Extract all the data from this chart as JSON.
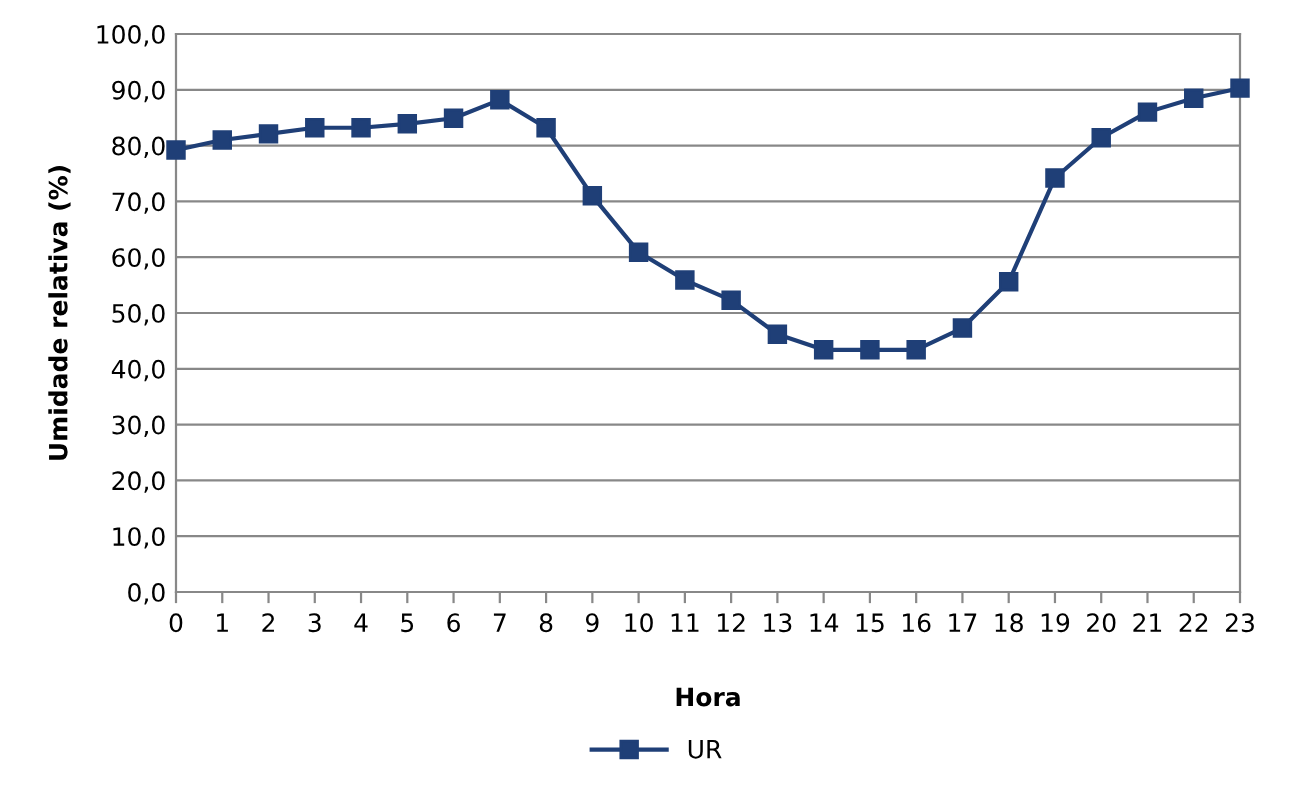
{
  "chart_data": {
    "type": "line",
    "xlabel": "Hora",
    "ylabel": "Umidade relativa (%)",
    "x": [
      0,
      1,
      2,
      3,
      4,
      5,
      6,
      7,
      8,
      9,
      10,
      11,
      12,
      13,
      14,
      15,
      16,
      17,
      18,
      19,
      20,
      21,
      22,
      23
    ],
    "series": [
      {
        "name": "UR",
        "color": "#1f3f77",
        "values": [
          79.2,
          81.0,
          82.1,
          83.2,
          83.2,
          83.9,
          84.9,
          88.2,
          83.2,
          71.0,
          60.9,
          55.9,
          52.3,
          46.2,
          43.4,
          43.4,
          43.4,
          47.3,
          55.6,
          74.2,
          81.4,
          86.0,
          88.5,
          90.3
        ]
      }
    ],
    "xlim": [
      0,
      23
    ],
    "xticks": [
      0,
      1,
      2,
      3,
      4,
      5,
      6,
      7,
      8,
      9,
      10,
      11,
      12,
      13,
      14,
      15,
      16,
      17,
      18,
      19,
      20,
      21,
      22,
      23
    ],
    "ylim": [
      0,
      100
    ],
    "yticks": [
      {
        "value": 0,
        "label": "0,0"
      },
      {
        "value": 10,
        "label": "10,0"
      },
      {
        "value": 20,
        "label": "20,0"
      },
      {
        "value": 30,
        "label": "30,0"
      },
      {
        "value": 40,
        "label": "40,0"
      },
      {
        "value": 50,
        "label": "50,0"
      },
      {
        "value": 60,
        "label": "60,0"
      },
      {
        "value": 70,
        "label": "70,0"
      },
      {
        "value": 80,
        "label": "80,0"
      },
      {
        "value": 90,
        "label": "90,0"
      },
      {
        "value": 100,
        "label": "100,0"
      }
    ],
    "grid": "y",
    "legend": "bottom",
    "marker": "square",
    "line_style": "solid"
  }
}
